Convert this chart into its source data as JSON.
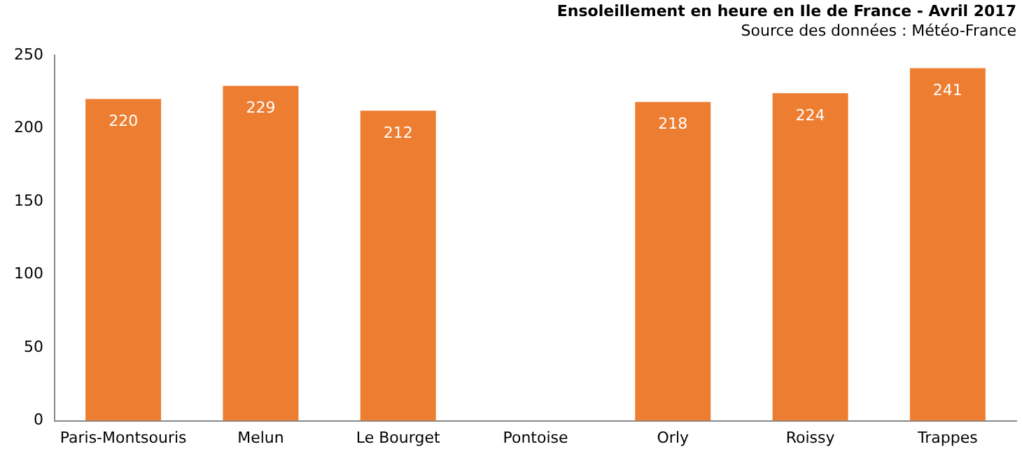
{
  "chart_data": {
    "type": "bar",
    "title": "Ensoleillement en heure en Ile de France - Avril 2017",
    "subtitle": "Source des données : Météo-France",
    "categories": [
      "Paris-Montsouris",
      "Melun",
      "Le Bourget",
      "Pontoise",
      "Orly",
      "Roissy",
      "Trappes"
    ],
    "values": [
      220,
      229,
      212,
      null,
      218,
      224,
      241
    ],
    "color": "#ed7d31",
    "ylim": [
      0,
      250
    ],
    "yticks": [
      0,
      50,
      100,
      150,
      200,
      250
    ],
    "grid": false,
    "data_labels": true,
    "legend": false
  }
}
